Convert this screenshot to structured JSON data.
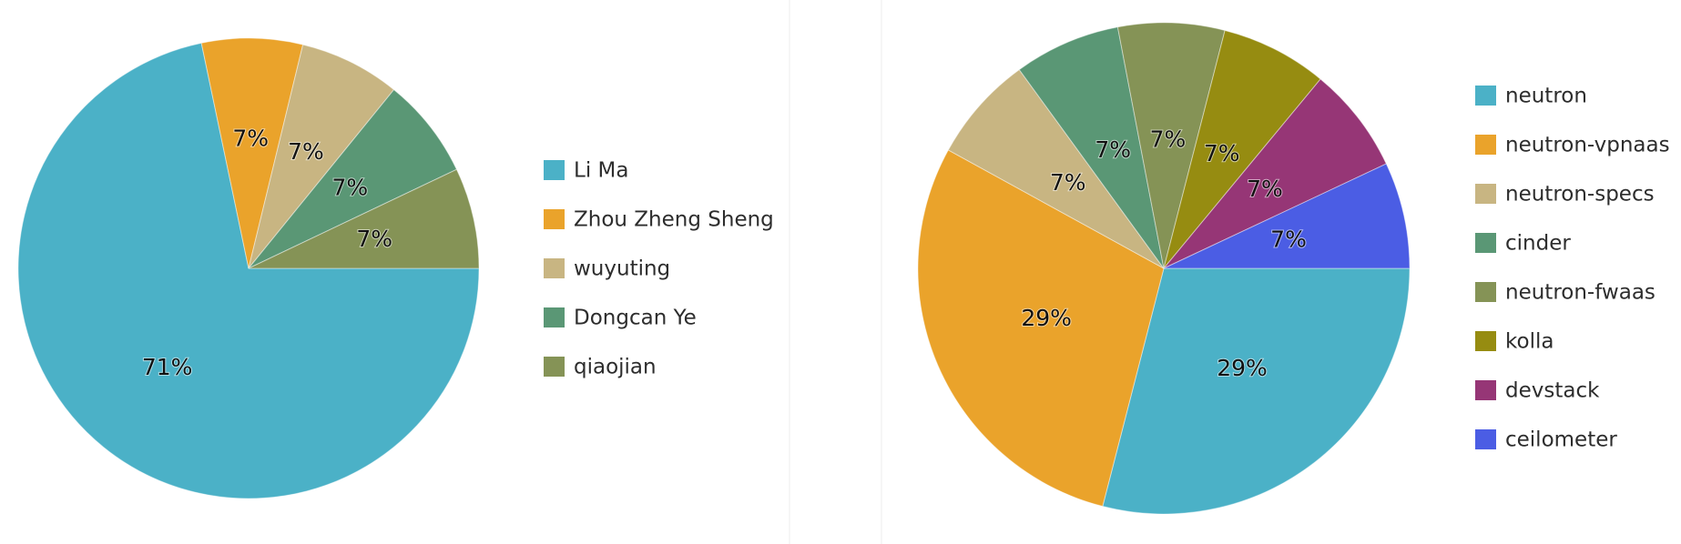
{
  "chart_data": [
    {
      "type": "pie",
      "title": "",
      "legend_position": "right",
      "series": [
        {
          "name": "Li Ma",
          "percent": 71,
          "label": "71%",
          "color": "#4bb1c7"
        },
        {
          "name": "Zhou Zheng Sheng",
          "percent": 7,
          "label": "7%",
          "color": "#eaa32b"
        },
        {
          "name": "wuyuting",
          "percent": 7,
          "label": "7%",
          "color": "#c8b582"
        },
        {
          "name": "Dongcan Ye",
          "percent": 7,
          "label": "7%",
          "color": "#5a9775"
        },
        {
          "name": "qiaojian",
          "percent": 7,
          "label": "7%",
          "color": "#859356"
        }
      ]
    },
    {
      "type": "pie",
      "title": "",
      "legend_position": "right",
      "series": [
        {
          "name": "neutron",
          "percent": 29,
          "label": "29%",
          "color": "#4bb1c7"
        },
        {
          "name": "neutron-vpnaas",
          "percent": 29,
          "label": "29%",
          "color": "#eaa32b"
        },
        {
          "name": "neutron-specs",
          "percent": 7,
          "label": "7%",
          "color": "#c8b582"
        },
        {
          "name": "cinder",
          "percent": 7,
          "label": "7%",
          "color": "#5a9775"
        },
        {
          "name": "neutron-fwaas",
          "percent": 7,
          "label": "7%",
          "color": "#859356"
        },
        {
          "name": "kolla",
          "percent": 7,
          "label": "7%",
          "color": "#968c11"
        },
        {
          "name": "devstack",
          "percent": 7,
          "label": "7%",
          "color": "#963676"
        },
        {
          "name": "ceilometer",
          "percent": 7,
          "label": "7%",
          "color": "#4b5de4"
        }
      ]
    }
  ]
}
